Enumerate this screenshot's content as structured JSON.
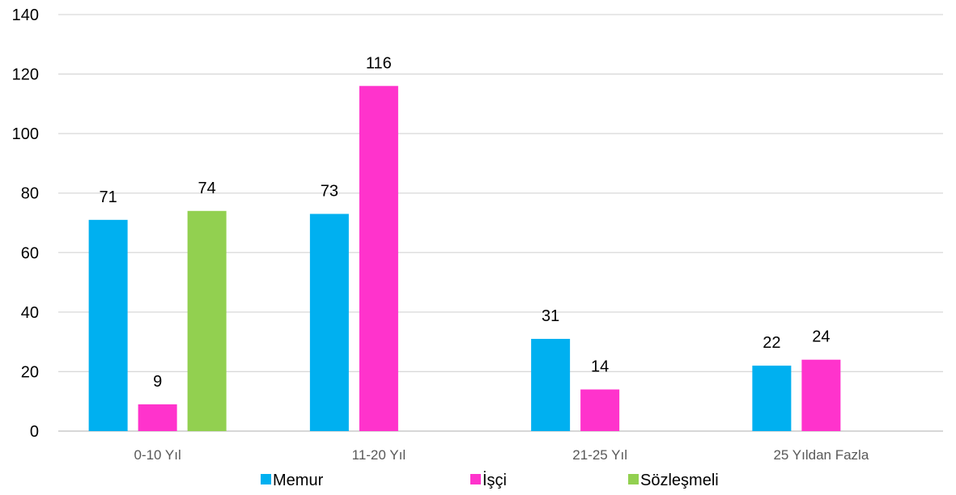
{
  "chart_data": {
    "type": "bar",
    "categories": [
      "0-10 Yıl",
      "11-20 Yıl",
      "21-25 Yıl",
      "25 Yıldan Fazla"
    ],
    "series": [
      {
        "name": "Memur",
        "values": [
          71,
          73,
          31,
          22
        ],
        "color": "#00b0f0"
      },
      {
        "name": "İşçi",
        "values": [
          9,
          116,
          14,
          24
        ],
        "color": "#ff33cc"
      },
      {
        "name": "Sözleşmeli",
        "values": [
          74,
          null,
          null,
          null
        ],
        "color": "#92d050"
      }
    ],
    "ylim": [
      0,
      140
    ],
    "yticks": [
      0,
      20,
      40,
      60,
      80,
      100,
      120,
      140
    ],
    "grid": true,
    "legend_position": "bottom",
    "data_labels": true
  }
}
